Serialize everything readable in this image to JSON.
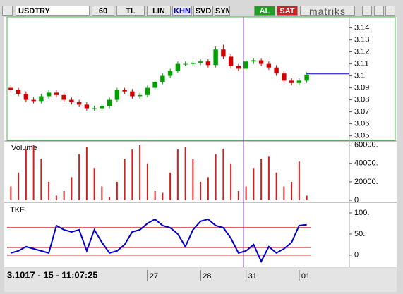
{
  "toolbar": {
    "symbol": "USDTRY",
    "interval": "60",
    "currency": "TL",
    "scale": "LIN",
    "mode": "KHN",
    "buttons": [
      "SVD",
      "SYM"
    ],
    "buy": "AL",
    "sell": "SAT",
    "brand": "matriks"
  },
  "chart_data": [
    {
      "type": "candlestick",
      "last_price": 3.1017,
      "categories": [
        null,
        null,
        null,
        null,
        null,
        null,
        null,
        null,
        null,
        null,
        null,
        null,
        null,
        null,
        null,
        null,
        null,
        null,
        "27",
        null,
        null,
        null,
        null,
        null,
        null,
        "28",
        null,
        null,
        null,
        null,
        null,
        "31",
        null,
        null,
        null,
        null,
        null,
        null,
        "01",
        null
      ],
      "open": [
        3.09,
        3.088,
        3.085,
        3.08,
        3.079,
        3.083,
        3.086,
        3.084,
        3.08,
        3.078,
        3.076,
        3.073,
        3.073,
        3.075,
        3.08,
        3.088,
        3.087,
        3.083,
        3.084,
        3.09,
        3.095,
        3.1,
        3.104,
        3.11,
        3.11,
        3.111,
        3.112,
        3.109,
        3.122,
        3.116,
        3.108,
        3.106,
        3.112,
        3.113,
        3.11,
        3.107,
        3.102,
        3.096,
        3.094,
        3.096
      ],
      "high": [
        3.092,
        3.09,
        3.087,
        3.082,
        3.085,
        3.088,
        3.088,
        3.086,
        3.082,
        3.08,
        3.078,
        3.075,
        3.077,
        3.082,
        3.09,
        3.09,
        3.089,
        3.086,
        3.092,
        3.097,
        3.102,
        3.106,
        3.112,
        3.112,
        3.113,
        3.114,
        3.114,
        3.125,
        3.126,
        3.118,
        3.11,
        3.114,
        3.115,
        3.115,
        3.112,
        3.109,
        3.104,
        3.098,
        3.098,
        3.103
      ],
      "low": [
        3.086,
        3.083,
        3.078,
        3.077,
        3.077,
        3.081,
        3.082,
        3.078,
        3.076,
        3.074,
        3.071,
        3.071,
        3.071,
        3.073,
        3.078,
        3.085,
        3.081,
        3.081,
        3.082,
        3.088,
        3.093,
        3.098,
        3.102,
        3.108,
        3.108,
        3.109,
        3.107,
        3.107,
        3.114,
        3.106,
        3.104,
        3.104,
        3.11,
        3.108,
        3.105,
        3.1,
        3.094,
        3.092,
        3.092,
        3.094
      ],
      "close": [
        3.088,
        3.085,
        3.08,
        3.079,
        3.083,
        3.086,
        3.084,
        3.08,
        3.078,
        3.076,
        3.073,
        3.073,
        3.075,
        3.08,
        3.088,
        3.087,
        3.083,
        3.084,
        3.09,
        3.095,
        3.1,
        3.104,
        3.11,
        3.11,
        3.111,
        3.112,
        3.109,
        3.122,
        3.116,
        3.108,
        3.106,
        3.112,
        3.113,
        3.11,
        3.107,
        3.102,
        3.096,
        3.094,
        3.096,
        3.101
      ],
      "up_color": "#00a000",
      "down_color": "#d00000",
      "ylim": [
        3.048,
        3.148
      ],
      "yticks": [
        3.05,
        3.06,
        3.07,
        3.08,
        3.09,
        3.1,
        3.11,
        3.12,
        3.13,
        3.14
      ]
    },
    {
      "type": "bar",
      "title": "Volume",
      "color": "#d02020",
      "values": [
        15000,
        30000,
        55000,
        60000,
        45000,
        20000,
        5000,
        10000,
        25000,
        50000,
        58000,
        35000,
        15000,
        3000,
        20000,
        45000,
        55000,
        60000,
        40000,
        10000,
        8000,
        30000,
        55000,
        58000,
        45000,
        20000,
        25000,
        50000,
        56000,
        40000,
        10000,
        15000,
        35000,
        45000,
        48000,
        30000,
        15000,
        20000,
        42000,
        5000
      ],
      "ylim": [
        0,
        62000
      ],
      "yticks": [
        0,
        {
          "value": 20000,
          "label": "20000."
        },
        {
          "value": 40000,
          "label": "40000."
        },
        {
          "value": 60000,
          "label": "60000."
        }
      ]
    },
    {
      "type": "line",
      "title": "TKE",
      "color": "#0000cc",
      "level_color": "#cc0000",
      "levels": [
        65,
        18,
        0
      ],
      "values": [
        5,
        10,
        20,
        15,
        10,
        5,
        70,
        60,
        55,
        60,
        10,
        60,
        30,
        5,
        10,
        25,
        55,
        60,
        75,
        85,
        70,
        65,
        50,
        20,
        60,
        80,
        85,
        70,
        65,
        40,
        5,
        10,
        25,
        -15,
        20,
        5,
        15,
        30,
        70,
        72
      ],
      "ylim": [
        -27,
        120
      ],
      "yticks": [
        0,
        {
          "value": 50,
          "label": "50."
        },
        {
          "value": 100,
          "label": "100."
        }
      ]
    }
  ],
  "status": {
    "price": "3.1017 - 15 - 11:07:25"
  }
}
